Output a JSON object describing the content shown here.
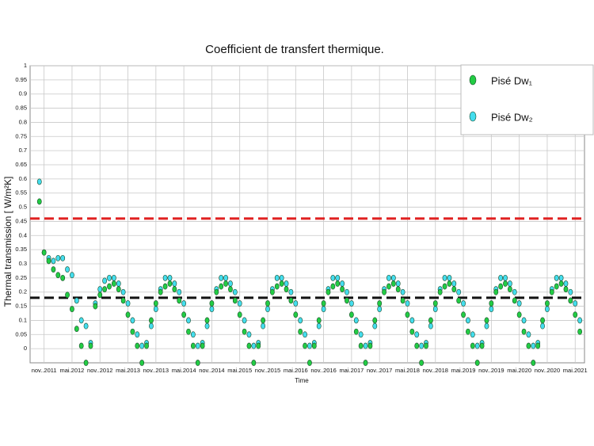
{
  "chart_data": {
    "type": "scatter",
    "title": "Coefficient de transfert thermique.",
    "ylabel": "Thermal transmission [ W/m²K]",
    "xlabel": "Time",
    "xlim": [
      "2011-08",
      "2021-07"
    ],
    "ylim": [
      -0.05,
      1
    ],
    "yticks": [
      0,
      0.05,
      0.1,
      0.15,
      0.2,
      0.25,
      0.3,
      0.35,
      0.4,
      0.45,
      0.5,
      0.55,
      0.6,
      0.65,
      0.7,
      0.75,
      0.8,
      0.85,
      0.9,
      0.95,
      1
    ],
    "xticks": [
      {
        "value": "2011-11",
        "label": "nov..2011"
      },
      {
        "value": "2012-05",
        "label": "mai.2012"
      },
      {
        "value": "2012-11",
        "label": "nov..2012"
      },
      {
        "value": "2013-05",
        "label": "mai.2013"
      },
      {
        "value": "2013-11",
        "label": "nov..2013"
      },
      {
        "value": "2014-05",
        "label": "mai.2014"
      },
      {
        "value": "2014-11",
        "label": "nov..2014"
      },
      {
        "value": "2015-05",
        "label": "mai.2015"
      },
      {
        "value": "2015-11",
        "label": "nov..2015"
      },
      {
        "value": "2016-05",
        "label": "mai.2016"
      },
      {
        "value": "2016-11",
        "label": "nov..2016"
      },
      {
        "value": "2017-05",
        "label": "mai.2017"
      },
      {
        "value": "2017-11",
        "label": "nov..2017"
      },
      {
        "value": "2018-05",
        "label": "mai.2018"
      },
      {
        "value": "2018-11",
        "label": "nov..2018"
      },
      {
        "value": "2019-05",
        "label": "mai.2019"
      },
      {
        "value": "2019-11",
        "label": "nov..2019"
      },
      {
        "value": "2020-05",
        "label": "mai.2020"
      },
      {
        "value": "2020-11",
        "label": "nov..2020"
      },
      {
        "value": "2021-05",
        "label": "mai.2021"
      }
    ],
    "grid": true,
    "legend": "upper right",
    "reference_lines": [
      {
        "value": 0.46,
        "color": "#e02020"
      },
      {
        "value": 0.18,
        "color": "#111111"
      }
    ],
    "x": [
      "2011-10",
      "2011-11",
      "2011-12",
      "2012-01",
      "2012-02",
      "2012-03",
      "2012-04",
      "2012-05",
      "2012-06",
      "2012-07",
      "2012-08",
      "2012-09",
      "2012-10",
      "2012-11",
      "2012-12",
      "2013-01",
      "2013-02",
      "2013-03",
      "2013-04",
      "2013-05",
      "2013-06",
      "2013-07",
      "2013-08",
      "2013-09",
      "2013-10",
      "2013-11",
      "2013-12",
      "2014-01",
      "2014-02",
      "2014-03",
      "2014-04",
      "2014-05",
      "2014-06",
      "2014-07",
      "2014-08",
      "2014-09",
      "2014-10",
      "2014-11",
      "2014-12",
      "2015-01",
      "2015-02",
      "2015-03",
      "2015-04",
      "2015-05",
      "2015-06",
      "2015-07",
      "2015-08",
      "2015-09",
      "2015-10",
      "2015-11",
      "2015-12",
      "2016-01",
      "2016-02",
      "2016-03",
      "2016-04",
      "2016-05",
      "2016-06",
      "2016-07",
      "2016-08",
      "2016-09",
      "2016-10",
      "2016-11",
      "2016-12",
      "2017-01",
      "2017-02",
      "2017-03",
      "2017-04",
      "2017-05",
      "2017-06",
      "2017-07",
      "2017-08",
      "2017-09",
      "2017-10",
      "2017-11",
      "2017-12",
      "2018-01",
      "2018-02",
      "2018-03",
      "2018-04",
      "2018-05",
      "2018-06",
      "2018-07",
      "2018-08",
      "2018-09",
      "2018-10",
      "2018-11",
      "2018-12",
      "2019-01",
      "2019-02",
      "2019-03",
      "2019-04",
      "2019-05",
      "2019-06",
      "2019-07",
      "2019-08",
      "2019-09",
      "2019-10",
      "2019-11",
      "2019-12",
      "2020-01",
      "2020-02",
      "2020-03",
      "2020-04",
      "2020-05",
      "2020-06",
      "2020-07",
      "2020-08",
      "2020-09",
      "2020-10",
      "2020-11",
      "2020-12",
      "2021-01",
      "2021-02",
      "2021-03",
      "2021-04",
      "2021-05",
      "2021-06"
    ],
    "series": [
      {
        "name": "Pisé Dw₁",
        "color": "#22cc44",
        "values": [
          0.52,
          0.34,
          0.31,
          0.28,
          0.26,
          0.25,
          0.19,
          0.14,
          0.07,
          0.01,
          -0.05,
          0.01,
          0.15,
          0.19,
          0.21,
          0.22,
          0.23,
          0.21,
          0.17,
          0.12,
          0.06,
          0.01,
          -0.05,
          0.01,
          0.1,
          0.16,
          0.2,
          0.22,
          0.23,
          0.21,
          0.17,
          0.12,
          0.06,
          0.01,
          -0.05,
          0.01,
          0.1,
          0.16,
          0.2,
          0.22,
          0.23,
          0.21,
          0.17,
          0.12,
          0.06,
          0.01,
          -0.05,
          0.01,
          0.1,
          0.16,
          0.2,
          0.22,
          0.23,
          0.21,
          0.17,
          0.12,
          0.06,
          0.01,
          -0.05,
          0.01,
          0.1,
          0.16,
          0.2,
          0.22,
          0.23,
          0.21,
          0.17,
          0.12,
          0.06,
          0.01,
          -0.05,
          0.01,
          0.1,
          0.16,
          0.2,
          0.22,
          0.23,
          0.21,
          0.17,
          0.12,
          0.06,
          0.01,
          -0.05,
          0.01,
          0.1,
          0.16,
          0.2,
          0.22,
          0.23,
          0.21,
          0.17,
          0.12,
          0.06,
          0.01,
          -0.05,
          0.01,
          0.1,
          0.16,
          0.2,
          0.22,
          0.23,
          0.21,
          0.17,
          0.12,
          0.06,
          0.01,
          -0.05,
          0.01,
          0.1,
          0.16,
          0.2,
          0.22,
          0.23,
          0.21,
          0.17,
          0.12,
          0.06
        ]
      },
      {
        "name": "Pisé Dw₂",
        "color": "#44ddee",
        "values": [
          0.59,
          0.34,
          0.32,
          0.31,
          0.32,
          0.32,
          0.28,
          0.26,
          0.17,
          0.1,
          0.08,
          0.02,
          0.16,
          0.21,
          0.24,
          0.25,
          0.25,
          0.23,
          0.2,
          0.16,
          0.1,
          0.05,
          0.01,
          0.02,
          0.08,
          0.14,
          0.21,
          0.25,
          0.25,
          0.23,
          0.2,
          0.16,
          0.1,
          0.05,
          0.01,
          0.02,
          0.08,
          0.14,
          0.21,
          0.25,
          0.25,
          0.23,
          0.2,
          0.16,
          0.1,
          0.05,
          0.01,
          0.02,
          0.08,
          0.14,
          0.21,
          0.25,
          0.25,
          0.23,
          0.2,
          0.16,
          0.1,
          0.05,
          0.01,
          0.02,
          0.08,
          0.14,
          0.21,
          0.25,
          0.25,
          0.23,
          0.2,
          0.16,
          0.1,
          0.05,
          0.01,
          0.02,
          0.08,
          0.14,
          0.21,
          0.25,
          0.25,
          0.23,
          0.2,
          0.16,
          0.1,
          0.05,
          0.01,
          0.02,
          0.08,
          0.14,
          0.21,
          0.25,
          0.25,
          0.23,
          0.2,
          0.16,
          0.1,
          0.05,
          0.01,
          0.02,
          0.08,
          0.14,
          0.21,
          0.25,
          0.25,
          0.23,
          0.2,
          0.16,
          0.1,
          0.05,
          0.01,
          0.02,
          0.08,
          0.14,
          0.21,
          0.25,
          0.25,
          0.23,
          0.2,
          0.16,
          0.1
        ]
      }
    ]
  }
}
